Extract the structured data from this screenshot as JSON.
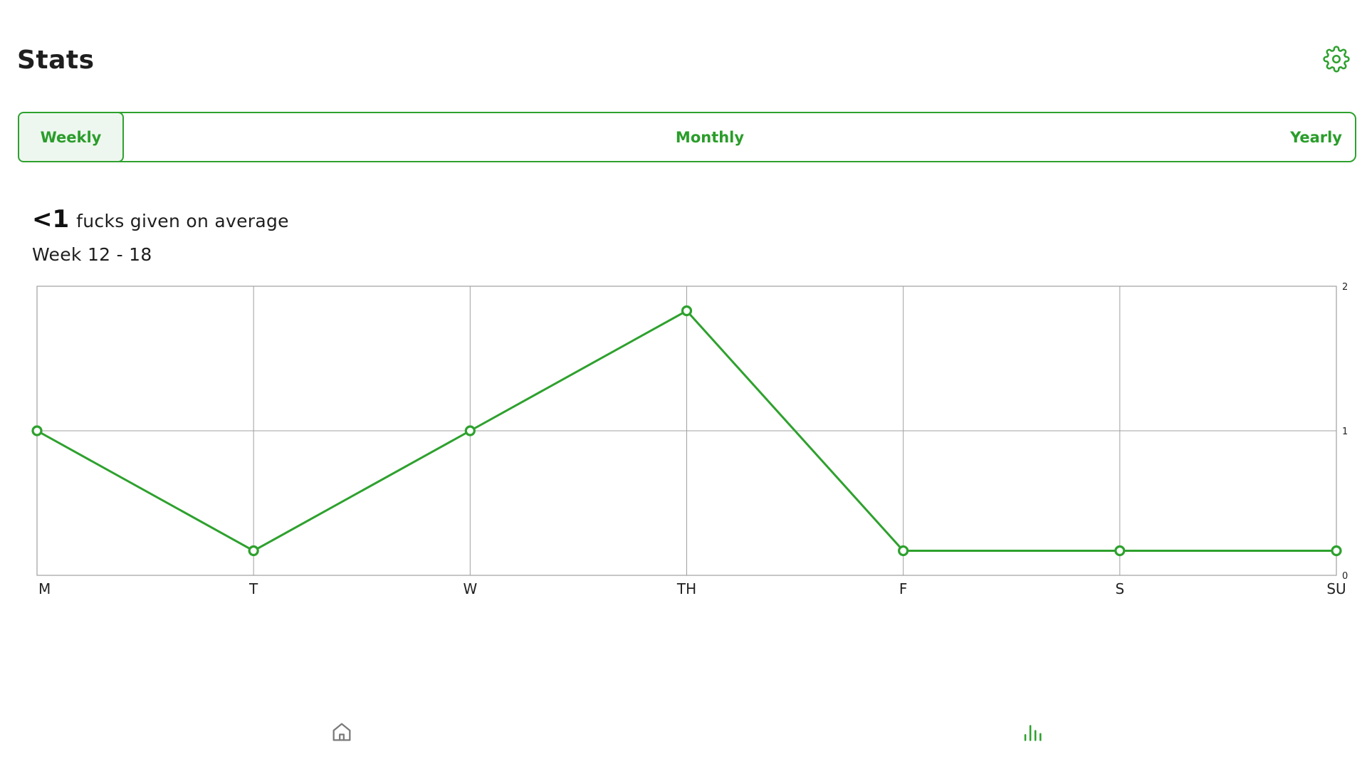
{
  "header": {
    "title": "Stats",
    "settings_icon": "gear-icon"
  },
  "period_tabs": [
    {
      "label": "Weekly",
      "selected": true
    },
    {
      "label": "Monthly",
      "selected": false
    },
    {
      "label": "Yearly",
      "selected": false
    }
  ],
  "summary": {
    "average_value": "<1",
    "average_label": "fucks given on average",
    "range_label": "Week 12 - 18"
  },
  "chart_data": {
    "type": "line",
    "categories": [
      "M",
      "T",
      "W",
      "TH",
      "F",
      "S",
      "SU"
    ],
    "series": [
      {
        "values": [
          1,
          0.17,
          1,
          1.83,
          0.17,
          0.17,
          0.17
        ]
      }
    ],
    "y_ticks": [
      "0",
      "1",
      "2"
    ],
    "ylim": [
      0,
      2
    ],
    "y_axis_side": "right",
    "grid": true,
    "color": "#2ea12e",
    "grid_color": "#a0a0a0"
  },
  "bottom_nav": {
    "items": [
      {
        "icon": "home-icon",
        "active": false
      },
      {
        "icon": "bar-chart-icon",
        "active": true
      }
    ],
    "active_color": "#2ea12e",
    "inactive_color": "#7a7a7a"
  },
  "colors": {
    "accent": "#2ea12e",
    "accent_light": "#eef7ef"
  }
}
